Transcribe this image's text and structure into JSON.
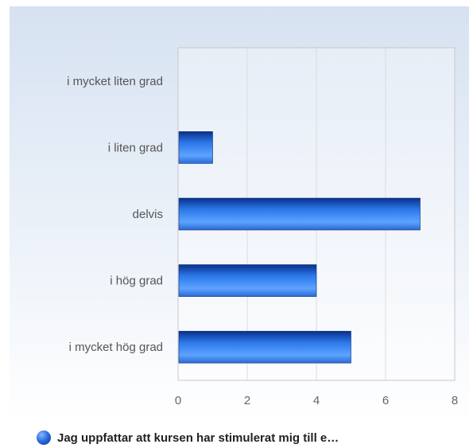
{
  "chart_data": {
    "type": "bar",
    "orientation": "horizontal",
    "categories": [
      "i mycket liten grad",
      "i liten grad",
      "delvis",
      "i hög grad",
      "i mycket hög grad"
    ],
    "series": [
      {
        "name": "Jag uppfattar att kursen har stimulerat mig till e…",
        "values": [
          0,
          1,
          7,
          4,
          5
        ]
      }
    ],
    "xlim": [
      0,
      8
    ],
    "xticks": [
      0,
      2,
      4,
      6,
      8
    ],
    "grid": true,
    "legend_position": "bottom-left",
    "colors": {
      "bar_dark": "#0b2f8a",
      "bar_mid": "#2a78e8",
      "bar_light": "#5da3ff",
      "grid": "#dcdcdc",
      "frame": "#c8c8c8"
    }
  }
}
